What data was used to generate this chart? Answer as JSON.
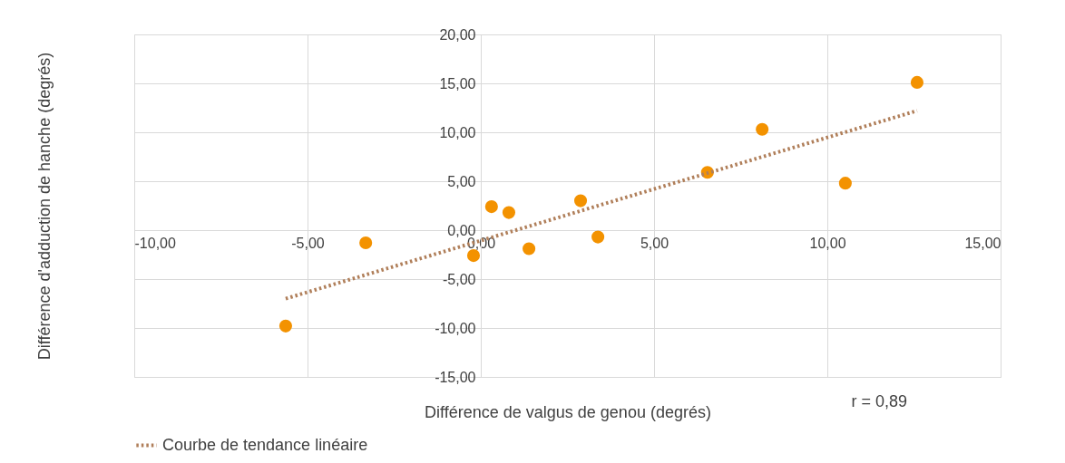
{
  "chart_data": {
    "type": "scatter",
    "xlabel": "Différence de valgus de genou (degrés)",
    "ylabel": "Différence d'adduction de hanche (degrés)",
    "annotations": [
      "r  = 0,89"
    ],
    "series": [
      {
        "type": "scatter",
        "marker": "circle",
        "color": "#f39200",
        "x": [
          -5.63,
          -3.32,
          -0.21,
          0.31,
          0.81,
          1.39,
          2.88,
          3.38,
          6.54,
          8.12,
          10.52,
          12.59
        ],
        "values": [
          -9.8,
          -1.3,
          -2.6,
          2.4,
          1.8,
          -1.9,
          3.0,
          -0.7,
          5.9,
          10.3,
          4.8,
          15.1
        ]
      },
      {
        "type": "line",
        "name": "Courbe de tendance linéaire",
        "color": "#b07f5a",
        "line_style": "dotted",
        "x": [
          -5.63,
          12.59
        ],
        "values": [
          -7.0,
          12.2
        ]
      }
    ],
    "xlim": [
      -10,
      15
    ],
    "ylim": [
      -15,
      20
    ],
    "xticks": [
      {
        "value": -10,
        "label": "-10,00"
      },
      {
        "value": -5,
        "label": "-5,00"
      },
      {
        "value": 0,
        "label": "0,00"
      },
      {
        "value": 5,
        "label": "5,00"
      },
      {
        "value": 10,
        "label": "10,00"
      },
      {
        "value": 15,
        "label": "15,00"
      }
    ],
    "yticks": [
      {
        "value": -15,
        "label": "-15,00"
      },
      {
        "value": -10,
        "label": "-10,00"
      },
      {
        "value": -5,
        "label": "-5,00"
      },
      {
        "value": 0,
        "label": "0,00"
      },
      {
        "value": 5,
        "label": "5,00"
      },
      {
        "value": 10,
        "label": "10,00"
      },
      {
        "value": 15,
        "label": "15,00"
      },
      {
        "value": 20,
        "label": "20,00"
      }
    ],
    "grid": true,
    "legend": "bottom"
  }
}
